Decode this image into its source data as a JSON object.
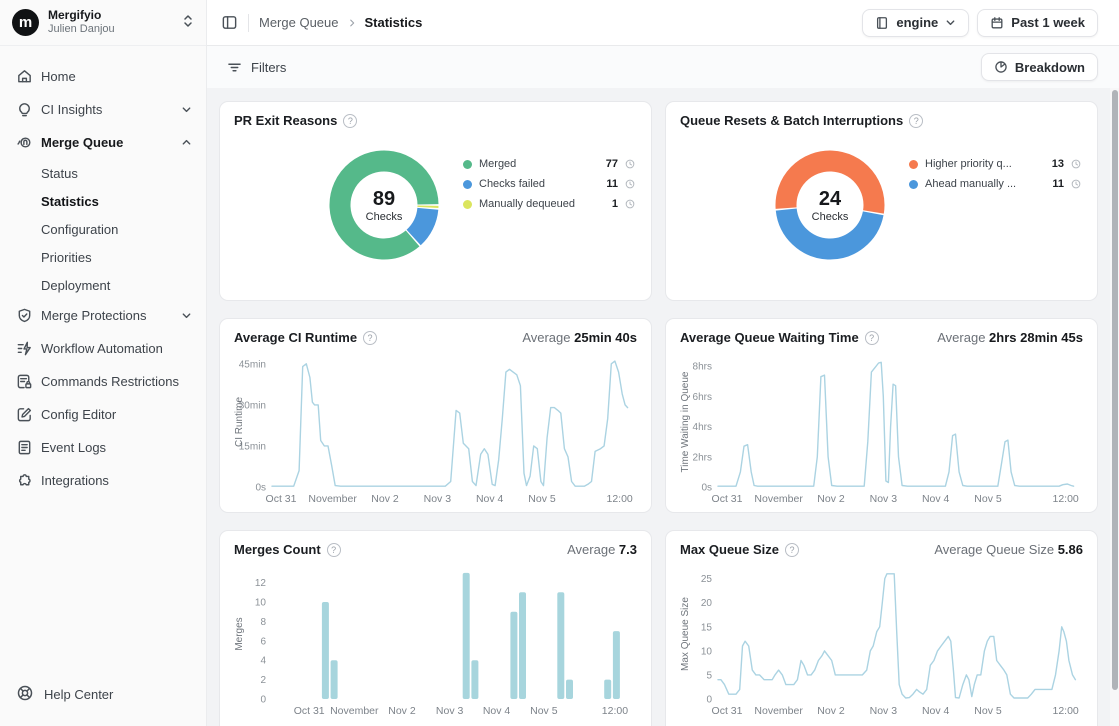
{
  "sidebar": {
    "org": "Mergifyio",
    "user": "Julien Danjou",
    "items": [
      {
        "label": "Home"
      },
      {
        "label": "CI Insights"
      },
      {
        "label": "Merge Queue"
      },
      {
        "label": "Merge Protections"
      },
      {
        "label": "Workflow Automation"
      },
      {
        "label": "Commands Restrictions"
      },
      {
        "label": "Config Editor"
      },
      {
        "label": "Event Logs"
      },
      {
        "label": "Integrations"
      }
    ],
    "merge_queue_sub": [
      {
        "label": "Status"
      },
      {
        "label": "Statistics",
        "active": true
      },
      {
        "label": "Configuration"
      },
      {
        "label": "Priorities"
      },
      {
        "label": "Deployment"
      }
    ],
    "help": "Help Center"
  },
  "header": {
    "breadcrumb_parent": "Merge Queue",
    "breadcrumb_current": "Statistics",
    "repo_selector": "engine",
    "period": "Past 1 week"
  },
  "toolbar": {
    "filters": "Filters",
    "breakdown": "Breakdown"
  },
  "colors": {
    "merged_green": "#55b98a",
    "failed_blue": "#4b97dc",
    "dequeued_yellow": "#dbe55e",
    "priority_orange": "#f57a4e",
    "line_blue": "#abd3e2",
    "bar_blue": "#a7d5dd"
  },
  "chart_data": [
    {
      "type": "donut",
      "title": "PR Exit Reasons",
      "center_value": "89",
      "center_label": "Checks",
      "start_angle": 90,
      "slices": [
        {
          "label": "Merged",
          "value": 77,
          "color": "#55b98a"
        },
        {
          "label": "Checks failed",
          "value": 11,
          "color": "#4b97dc"
        },
        {
          "label": "Manually dequeued",
          "value": 1,
          "color": "#dbe55e"
        }
      ]
    },
    {
      "type": "donut",
      "title": "Queue Resets & Batch Interruptions",
      "center_value": "24",
      "center_label": "Checks",
      "start_angle": 100,
      "slices": [
        {
          "label": "Higher priority q...",
          "value": 13,
          "color": "#f57a4e"
        },
        {
          "label": "Ahead manually ...",
          "value": 11,
          "color": "#4b97dc"
        }
      ]
    },
    {
      "type": "line",
      "title": "Average CI Runtime",
      "average_label": "Average",
      "average_value": "25min 40s",
      "ylabel": "CI Runtime",
      "color": "#abd3e2",
      "ymax": 47.5,
      "yticks": [
        [
          0,
          "0s"
        ],
        [
          15,
          "15min"
        ],
        [
          30,
          "30min"
        ],
        [
          45,
          "45min"
        ]
      ],
      "xticks": [
        [
          0.025,
          "Oct 31"
        ],
        [
          0.168,
          "November"
        ],
        [
          0.313,
          "Nov 2"
        ],
        [
          0.458,
          "Nov 3"
        ],
        [
          0.603,
          "Nov 4"
        ],
        [
          0.748,
          "Nov 5"
        ],
        [
          0.963,
          "12:00"
        ]
      ],
      "points": [
        [
          0,
          0.3
        ],
        [
          0.06,
          0.3
        ],
        [
          0.075,
          6
        ],
        [
          0.085,
          44
        ],
        [
          0.095,
          45
        ],
        [
          0.105,
          40
        ],
        [
          0.112,
          31
        ],
        [
          0.118,
          30
        ],
        [
          0.128,
          30
        ],
        [
          0.135,
          17
        ],
        [
          0.145,
          15
        ],
        [
          0.155,
          15
        ],
        [
          0.165,
          8
        ],
        [
          0.175,
          0.5
        ],
        [
          0.19,
          0.3
        ],
        [
          0.48,
          0.3
        ],
        [
          0.495,
          2
        ],
        [
          0.51,
          28
        ],
        [
          0.52,
          27
        ],
        [
          0.53,
          16
        ],
        [
          0.545,
          14
        ],
        [
          0.555,
          2
        ],
        [
          0.565,
          0.5
        ],
        [
          0.578,
          12
        ],
        [
          0.588,
          14
        ],
        [
          0.598,
          12
        ],
        [
          0.61,
          1
        ],
        [
          0.618,
          0.5
        ],
        [
          0.628,
          10
        ],
        [
          0.638,
          25
        ],
        [
          0.648,
          42
        ],
        [
          0.658,
          43
        ],
        [
          0.668,
          42
        ],
        [
          0.678,
          41
        ],
        [
          0.688,
          37
        ],
        [
          0.698,
          5
        ],
        [
          0.705,
          0.5
        ],
        [
          0.715,
          4
        ],
        [
          0.725,
          15
        ],
        [
          0.735,
          14
        ],
        [
          0.745,
          2
        ],
        [
          0.752,
          0.5
        ],
        [
          0.762,
          18
        ],
        [
          0.772,
          29
        ],
        [
          0.782,
          29
        ],
        [
          0.792,
          28
        ],
        [
          0.8,
          27
        ],
        [
          0.81,
          14
        ],
        [
          0.82,
          11
        ],
        [
          0.83,
          2
        ],
        [
          0.84,
          0.3
        ],
        [
          0.865,
          0.3
        ],
        [
          0.875,
          1
        ],
        [
          0.885,
          2
        ],
        [
          0.895,
          13
        ],
        [
          0.91,
          14
        ],
        [
          0.92,
          15
        ],
        [
          0.93,
          25
        ],
        [
          0.94,
          45
        ],
        [
          0.95,
          46
        ],
        [
          0.96,
          42
        ],
        [
          0.97,
          34
        ],
        [
          0.978,
          30
        ],
        [
          0.985,
          29
        ]
      ]
    },
    {
      "type": "line",
      "title": "Average Queue Waiting Time",
      "average_label": "Average",
      "average_value": "2hrs 28min 45s",
      "ylabel": "Time Waiting in Queue",
      "color": "#abd3e2",
      "ymax": 8.6,
      "yticks": [
        [
          0,
          "0s"
        ],
        [
          2,
          "2hrs"
        ],
        [
          4,
          "4hrs"
        ],
        [
          6,
          "6hrs"
        ],
        [
          8,
          "8hrs"
        ]
      ],
      "xticks": [
        [
          0.025,
          "Oct 31"
        ],
        [
          0.168,
          "November"
        ],
        [
          0.313,
          "Nov 2"
        ],
        [
          0.458,
          "Nov 3"
        ],
        [
          0.603,
          "Nov 4"
        ],
        [
          0.748,
          "Nov 5"
        ],
        [
          0.963,
          "12:00"
        ]
      ],
      "points": [
        [
          0,
          0.05
        ],
        [
          0.05,
          0.05
        ],
        [
          0.062,
          1
        ],
        [
          0.072,
          2.7
        ],
        [
          0.082,
          2.8
        ],
        [
          0.092,
          1
        ],
        [
          0.1,
          0.1
        ],
        [
          0.11,
          0.05
        ],
        [
          0.265,
          0.05
        ],
        [
          0.275,
          2
        ],
        [
          0.285,
          7.3
        ],
        [
          0.295,
          7.4
        ],
        [
          0.305,
          2
        ],
        [
          0.315,
          0.1
        ],
        [
          0.33,
          0.05
        ],
        [
          0.405,
          0.05
        ],
        [
          0.415,
          3
        ],
        [
          0.425,
          7.6
        ],
        [
          0.435,
          7.9
        ],
        [
          0.445,
          8.2
        ],
        [
          0.452,
          8.25
        ],
        [
          0.458,
          6
        ],
        [
          0.465,
          0.4
        ],
        [
          0.472,
          0.3
        ],
        [
          0.478,
          4
        ],
        [
          0.485,
          6.8
        ],
        [
          0.492,
          6.7
        ],
        [
          0.5,
          2
        ],
        [
          0.51,
          0.1
        ],
        [
          0.525,
          0.05
        ],
        [
          0.63,
          0.05
        ],
        [
          0.64,
          1
        ],
        [
          0.65,
          3.4
        ],
        [
          0.658,
          3.5
        ],
        [
          0.668,
          1
        ],
        [
          0.678,
          0.1
        ],
        [
          0.69,
          0.05
        ],
        [
          0.775,
          0.05
        ],
        [
          0.785,
          1.5
        ],
        [
          0.795,
          3
        ],
        [
          0.803,
          3.1
        ],
        [
          0.812,
          1
        ],
        [
          0.822,
          0.1
        ],
        [
          0.835,
          0.05
        ],
        [
          0.945,
          0.05
        ],
        [
          0.955,
          0.15
        ],
        [
          0.968,
          0.2
        ],
        [
          0.978,
          0.1
        ],
        [
          0.985,
          0.05
        ]
      ]
    },
    {
      "type": "bar",
      "title": "Merges Count",
      "average_label": "Average",
      "average_value": "7.3",
      "ylabel": "Merges",
      "color": "#a7d5dd",
      "ymax": 13.4,
      "yticks": [
        [
          0,
          "0"
        ],
        [
          2,
          "2"
        ],
        [
          4,
          "4"
        ],
        [
          6,
          "6"
        ],
        [
          8,
          "8"
        ],
        [
          10,
          "10"
        ],
        [
          12,
          "12"
        ]
      ],
      "xticks": [
        [
          0.103,
          "Oct 31"
        ],
        [
          0.228,
          "November"
        ],
        [
          0.36,
          "Nov 2"
        ],
        [
          0.492,
          "Nov 3"
        ],
        [
          0.622,
          "Nov 4"
        ],
        [
          0.753,
          "Nov 5"
        ],
        [
          0.95,
          "12:00"
        ]
      ],
      "bars": [
        [
          0.148,
          10
        ],
        [
          0.172,
          4
        ],
        [
          0.538,
          13
        ],
        [
          0.562,
          4
        ],
        [
          0.67,
          9
        ],
        [
          0.694,
          11
        ],
        [
          0.8,
          11
        ],
        [
          0.824,
          2
        ],
        [
          0.93,
          2
        ],
        [
          0.954,
          7
        ]
      ]
    },
    {
      "type": "line",
      "title": "Max Queue Size",
      "average_label": "Average Queue Size",
      "average_value": "5.86",
      "ylabel": "Max Queue Size",
      "color": "#abd3e2",
      "ymax": 27,
      "yticks": [
        [
          0,
          "0"
        ],
        [
          5,
          "5"
        ],
        [
          10,
          "10"
        ],
        [
          15,
          "15"
        ],
        [
          20,
          "20"
        ],
        [
          25,
          "25"
        ]
      ],
      "xticks": [
        [
          0.025,
          "Oct 31"
        ],
        [
          0.168,
          "November"
        ],
        [
          0.313,
          "Nov 2"
        ],
        [
          0.458,
          "Nov 3"
        ],
        [
          0.603,
          "Nov 4"
        ],
        [
          0.748,
          "Nov 5"
        ],
        [
          0.963,
          "12:00"
        ]
      ],
      "points": [
        [
          0,
          4
        ],
        [
          0.008,
          4
        ],
        [
          0.018,
          3
        ],
        [
          0.03,
          1
        ],
        [
          0.05,
          1
        ],
        [
          0.06,
          2
        ],
        [
          0.068,
          11
        ],
        [
          0.075,
          12
        ],
        [
          0.085,
          11
        ],
        [
          0.095,
          6
        ],
        [
          0.105,
          5
        ],
        [
          0.115,
          5
        ],
        [
          0.128,
          4
        ],
        [
          0.14,
          4
        ],
        [
          0.15,
          4
        ],
        [
          0.158,
          5
        ],
        [
          0.168,
          6
        ],
        [
          0.178,
          5
        ],
        [
          0.188,
          3
        ],
        [
          0.2,
          3
        ],
        [
          0.21,
          3
        ],
        [
          0.22,
          4
        ],
        [
          0.23,
          8
        ],
        [
          0.238,
          7
        ],
        [
          0.248,
          5
        ],
        [
          0.258,
          5
        ],
        [
          0.268,
          6
        ],
        [
          0.278,
          8
        ],
        [
          0.288,
          9
        ],
        [
          0.295,
          10
        ],
        [
          0.305,
          9
        ],
        [
          0.315,
          8
        ],
        [
          0.325,
          5
        ],
        [
          0.335,
          5
        ],
        [
          0.4,
          5
        ],
        [
          0.412,
          6
        ],
        [
          0.422,
          10
        ],
        [
          0.43,
          11
        ],
        [
          0.44,
          14
        ],
        [
          0.448,
          15
        ],
        [
          0.455,
          20
        ],
        [
          0.462,
          25
        ],
        [
          0.468,
          26
        ],
        [
          0.478,
          26
        ],
        [
          0.488,
          26
        ],
        [
          0.495,
          14
        ],
        [
          0.502,
          3
        ],
        [
          0.51,
          1
        ],
        [
          0.52,
          0.2
        ],
        [
          0.53,
          0.3
        ],
        [
          0.54,
          1
        ],
        [
          0.55,
          2
        ],
        [
          0.558,
          1.5
        ],
        [
          0.568,
          1
        ],
        [
          0.578,
          2
        ],
        [
          0.588,
          7
        ],
        [
          0.598,
          8
        ],
        [
          0.608,
          10
        ],
        [
          0.618,
          11
        ],
        [
          0.628,
          12
        ],
        [
          0.638,
          13
        ],
        [
          0.645,
          12
        ],
        [
          0.652,
          6
        ],
        [
          0.658,
          0.3
        ],
        [
          0.668,
          0.2
        ],
        [
          0.678,
          3
        ],
        [
          0.688,
          5
        ],
        [
          0.695,
          4
        ],
        [
          0.703,
          0.5
        ],
        [
          0.71,
          3
        ],
        [
          0.718,
          5
        ],
        [
          0.728,
          5
        ],
        [
          0.738,
          10
        ],
        [
          0.746,
          12
        ],
        [
          0.754,
          13
        ],
        [
          0.764,
          13
        ],
        [
          0.772,
          8
        ],
        [
          0.782,
          7
        ],
        [
          0.792,
          6
        ],
        [
          0.8,
          5
        ],
        [
          0.81,
          1
        ],
        [
          0.82,
          0.2
        ],
        [
          0.858,
          0.2
        ],
        [
          0.868,
          1
        ],
        [
          0.878,
          2
        ],
        [
          0.91,
          2
        ],
        [
          0.925,
          2
        ],
        [
          0.935,
          5
        ],
        [
          0.945,
          10
        ],
        [
          0.952,
          15
        ],
        [
          0.958,
          14
        ],
        [
          0.965,
          12
        ],
        [
          0.972,
          8
        ],
        [
          0.982,
          5
        ],
        [
          0.99,
          4
        ]
      ]
    }
  ]
}
